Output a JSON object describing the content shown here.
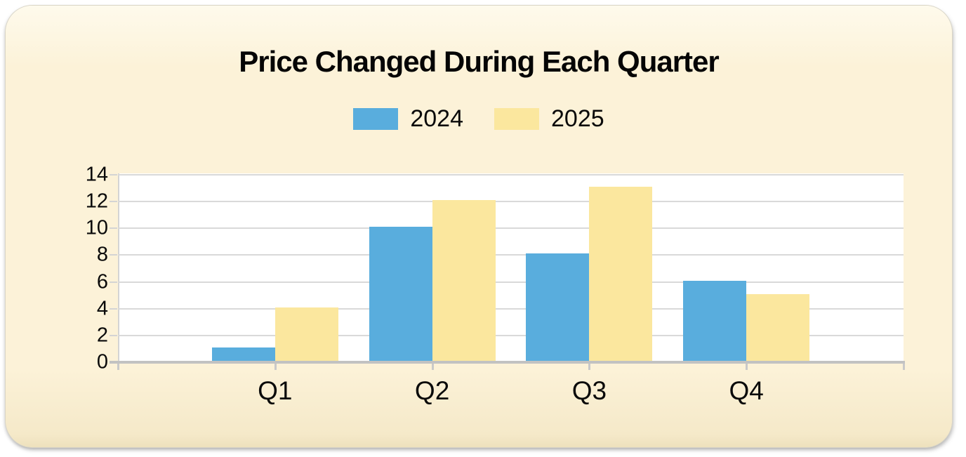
{
  "panel": {
    "background_color": "#FCF2D8",
    "plot_background_color": "#FFFFFF",
    "gridline_color": "#D9D9D9",
    "axis_color": "#C2C2C2"
  },
  "chart_data": {
    "type": "bar",
    "title": "Price Changed During Each Quarter",
    "categories": [
      "Q1",
      "Q2",
      "Q3",
      "Q4"
    ],
    "series": [
      {
        "name": "2024",
        "color": "#59ADDD",
        "values": [
          1,
          10,
          8,
          6
        ]
      },
      {
        "name": "2025",
        "color": "#FBE79E",
        "values": [
          4,
          12,
          13,
          5
        ]
      }
    ],
    "xlabel": "",
    "ylabel": "",
    "ylim": [
      0,
      14
    ],
    "yticks": [
      0,
      2,
      4,
      6,
      8,
      10,
      12,
      14
    ],
    "grid": "horizontal",
    "legend_position": "top-center"
  }
}
